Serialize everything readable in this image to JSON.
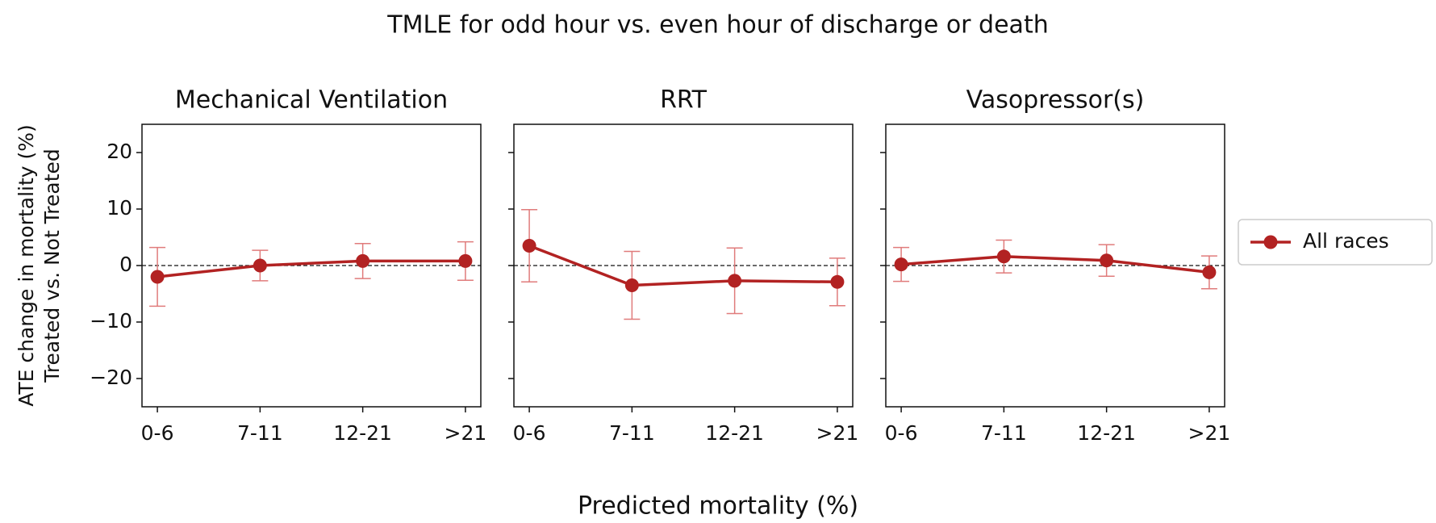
{
  "title": "TMLE for odd hour vs. even hour of discharge or death",
  "xlabel": "Predicted mortality (%)",
  "ylabel": [
    "ATE change in mortality (%)",
    "Treated vs. Not Treated"
  ],
  "chart_data": [
    {
      "type": "line",
      "title": "Mechanical Ventilation",
      "categories": [
        "0-6",
        "7-11",
        "12-21",
        ">21"
      ],
      "series": [
        {
          "name": "All races",
          "color": "#b22222",
          "error_color": "#e07b7b",
          "values": [
            -2,
            0,
            0.8,
            0.8
          ],
          "errors": [
            5.2,
            2.7,
            3.1,
            3.4
          ]
        }
      ],
      "ylim": [
        -25,
        25
      ],
      "yticks": [
        {
          "value": -20,
          "label": "−20"
        },
        {
          "value": -10,
          "label": "−10"
        },
        0,
        10,
        20
      ],
      "reference_line": 0
    },
    {
      "type": "line",
      "title": "RRT",
      "categories": [
        "0-6",
        "7-11",
        "12-21",
        ">21"
      ],
      "series": [
        {
          "name": "All races",
          "color": "#b22222",
          "error_color": "#e07b7b",
          "values": [
            3.5,
            -3.5,
            -2.7,
            -2.9
          ],
          "errors": [
            6.4,
            6,
            5.8,
            4.2
          ]
        }
      ],
      "ylim": [
        -25,
        25
      ],
      "yticks": [
        -20,
        -10,
        0,
        10,
        20
      ],
      "reference_line": 0
    },
    {
      "type": "line",
      "title": "Vasopressor(s)",
      "categories": [
        "0-6",
        "7-11",
        "12-21",
        ">21"
      ],
      "series": [
        {
          "name": "All races",
          "color": "#b22222",
          "error_color": "#e07b7b",
          "values": [
            0.2,
            1.6,
            0.9,
            -1.2
          ],
          "errors": [
            3,
            2.9,
            2.8,
            2.9
          ]
        }
      ],
      "ylim": [
        -25,
        25
      ],
      "yticks": [
        -20,
        -10,
        0,
        10,
        20
      ],
      "reference_line": 0
    }
  ]
}
